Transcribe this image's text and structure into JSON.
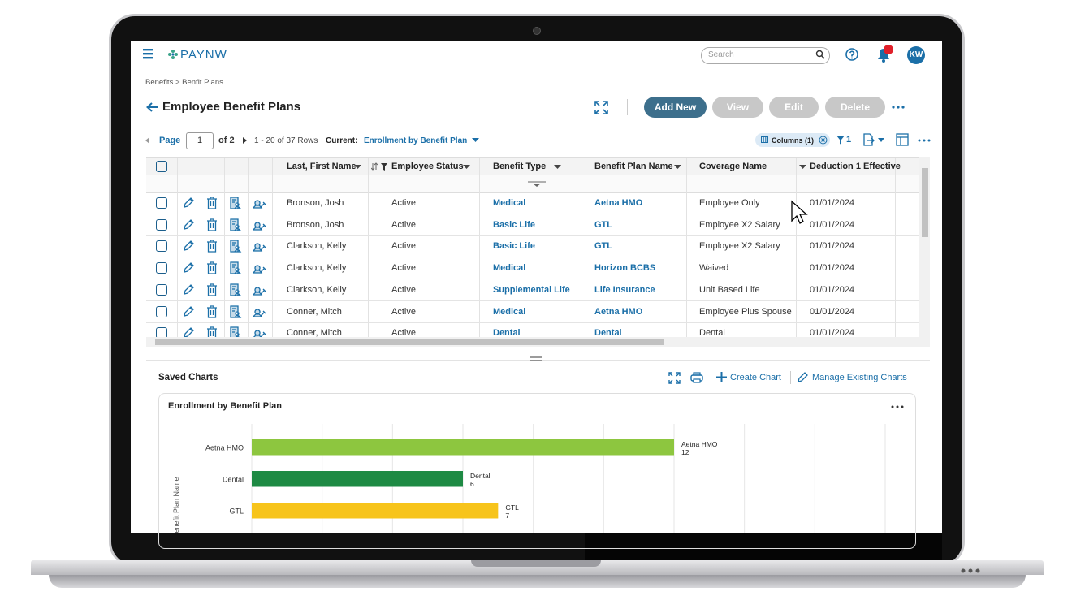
{
  "header": {
    "logo": "PAYNW",
    "search_placeholder": "Search",
    "user_initials": "KW"
  },
  "breadcrumb": "Benefits > Benfit Plans",
  "page_title": "Employee Benefit Plans",
  "actions": [
    "Add New",
    "View",
    "Edit",
    "Delete"
  ],
  "pagination": {
    "label": "Page",
    "page": 1,
    "of": "of 2",
    "rows": "1 - 20 of 37 Rows",
    "current_label": "Current:",
    "current_view": "Enrollment by Benefit Plan"
  },
  "toolbar": {
    "columns": "Columns (1)",
    "filter_count": 1
  },
  "table": {
    "columns": [
      "Last, First Name",
      "Employee Status",
      "Benefit Type",
      "Benefit Plan Name",
      "Coverage Name",
      "Deduction 1 Effective"
    ],
    "rows": [
      [
        "Bronson, Josh",
        "Active",
        "Medical",
        "Aetna HMO",
        "Employee Only",
        "01/01/2024"
      ],
      [
        "Bronson, Josh",
        "Active",
        "Basic Life",
        "GTL",
        "Employee X2 Salary",
        "01/01/2024"
      ],
      [
        "Clarkson, Kelly",
        "Active",
        "Basic Life",
        "GTL",
        "Employee X2 Salary",
        "01/01/2024"
      ],
      [
        "Clarkson, Kelly",
        "Active",
        "Medical",
        "Horizon BCBS",
        "Waived",
        "01/01/2024"
      ],
      [
        "Clarkson, Kelly",
        "Active",
        "Supplemental Life",
        "Life Insurance",
        "Unit Based Life",
        "01/01/2024"
      ],
      [
        "Conner, Mitch",
        "Active",
        "Medical",
        "Aetna HMO",
        "Employee Plus Spouse",
        "01/01/2024"
      ],
      [
        "Conner, Mitch",
        "Active",
        "Dental",
        "Dental",
        "Dental",
        "01/01/2024"
      ]
    ]
  },
  "saved_charts": {
    "title": "Saved Charts",
    "create": "Create Chart",
    "manage": "Manage Existing Charts"
  },
  "chart_data": {
    "type": "bar",
    "orientation": "horizontal",
    "title": "Enrollment by Benefit Plan",
    "y_label": "Benefit Plan Name",
    "categories": [
      "Aetna HMO",
      "Dental",
      "GTL"
    ],
    "values": [
      12,
      6,
      7
    ],
    "colors": [
      "#8dc63f",
      "#1e8a44",
      "#f7c41b"
    ],
    "xlim": [
      0,
      18
    ],
    "xticks": [
      0,
      2,
      4,
      6,
      8,
      10,
      12,
      14,
      16,
      18
    ],
    "grid": true
  }
}
